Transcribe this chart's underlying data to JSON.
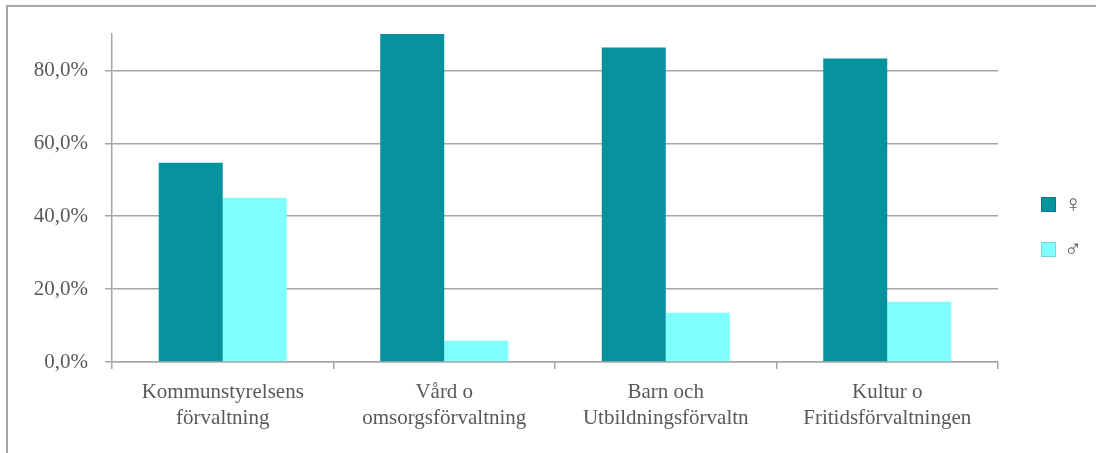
{
  "chart_data": {
    "type": "bar",
    "categories": [
      "Kommunstyrelsens förvaltning",
      "Vård o omsorgsförvaltning",
      "Barn och Utbildningsförvaltn",
      "Kultur o Fritidsförvaltningen"
    ],
    "series": [
      {
        "name": "♀",
        "color": "#07939e",
        "values": [
          54.7,
          90,
          86.3,
          83.3
        ]
      },
      {
        "name": "♂",
        "color": "#80ffff",
        "values": [
          45.1,
          5.8,
          13.5,
          16.5
        ]
      }
    ],
    "ylim": [
      0,
      90
    ],
    "yticks": [
      {
        "value": 0,
        "label": "0,0%"
      },
      {
        "value": 20,
        "label": "20,0%"
      },
      {
        "value": 40,
        "label": "40,0%"
      },
      {
        "value": 60,
        "label": "60,0%"
      },
      {
        "value": 80,
        "label": "80,0%"
      }
    ],
    "grid": "y",
    "legend": "right"
  }
}
